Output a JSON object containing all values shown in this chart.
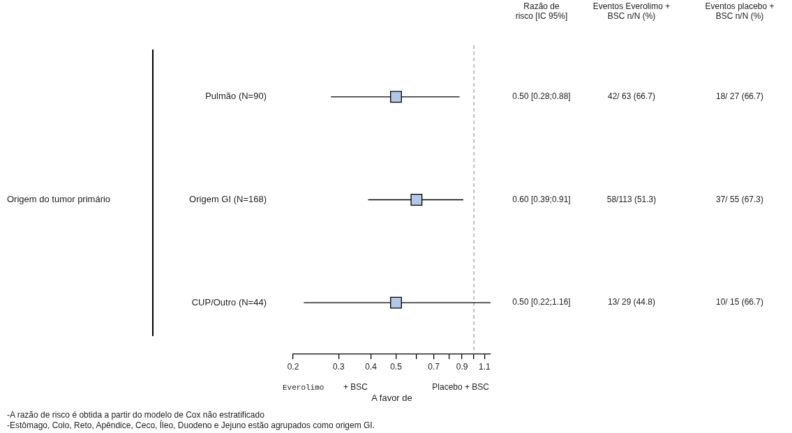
{
  "chart_data": {
    "type": "scatter",
    "orientation": "horizontal",
    "categories": [
      "Pulmão (N=90)",
      "Origem GI (N=168)",
      "CUP/Outro (N=44)"
    ],
    "values": [
      0.5,
      0.6,
      0.5
    ],
    "errors": [
      [
        0.28,
        0.88
      ],
      [
        0.39,
        0.91
      ],
      [
        0.22,
        1.16
      ]
    ],
    "value_labels": [
      "0.50 [0.28;0.88]",
      "0.60 [0.39;0.91]",
      "0.50 [0.22;1.16]"
    ],
    "color": "#b4c7e7",
    "marker": "square",
    "log": "x",
    "xlim": [
      0.2,
      1.16
    ],
    "xticks": [
      0.2,
      0.3,
      0.4,
      0.5,
      {
        "value": 0.6,
        "label": null
      },
      0.7,
      {
        "value": 0.8,
        "label": null
      },
      0.9,
      {
        "value": 1,
        "label": null
      },
      1.1
    ],
    "xlabel": "A favor de",
    "grid": false,
    "legend": false,
    "ref_lines": [
      {
        "axis": "x",
        "value": 1,
        "color": "#808080",
        "line_style": "dashed"
      }
    ],
    "annotations": [
      "Origem do tumor primário",
      "Everolimo",
      "+ BSC",
      "Placebo + BSC",
      "-A razão de risco é obtida a partir do modelo de Cox não estratificado",
      "-Estômago, Colo, Reto, Apêndice, Ceco, Íleo, Duodeno e Jejuno estão agrupados como origem GI.",
      "Razão de risco [IC 95%]",
      "Eventos Everolimo + BSC n/N (%)",
      "Eventos placebo + BSC n/N (%)",
      "42/ 63 (66.7)",
      "18/ 27 (66.7)",
      "58/113 (51.3)",
      "37/ 55 (67.3)",
      "13/ 29 (44.8)",
      "10/ 15 (66.7)"
    ]
  }
}
